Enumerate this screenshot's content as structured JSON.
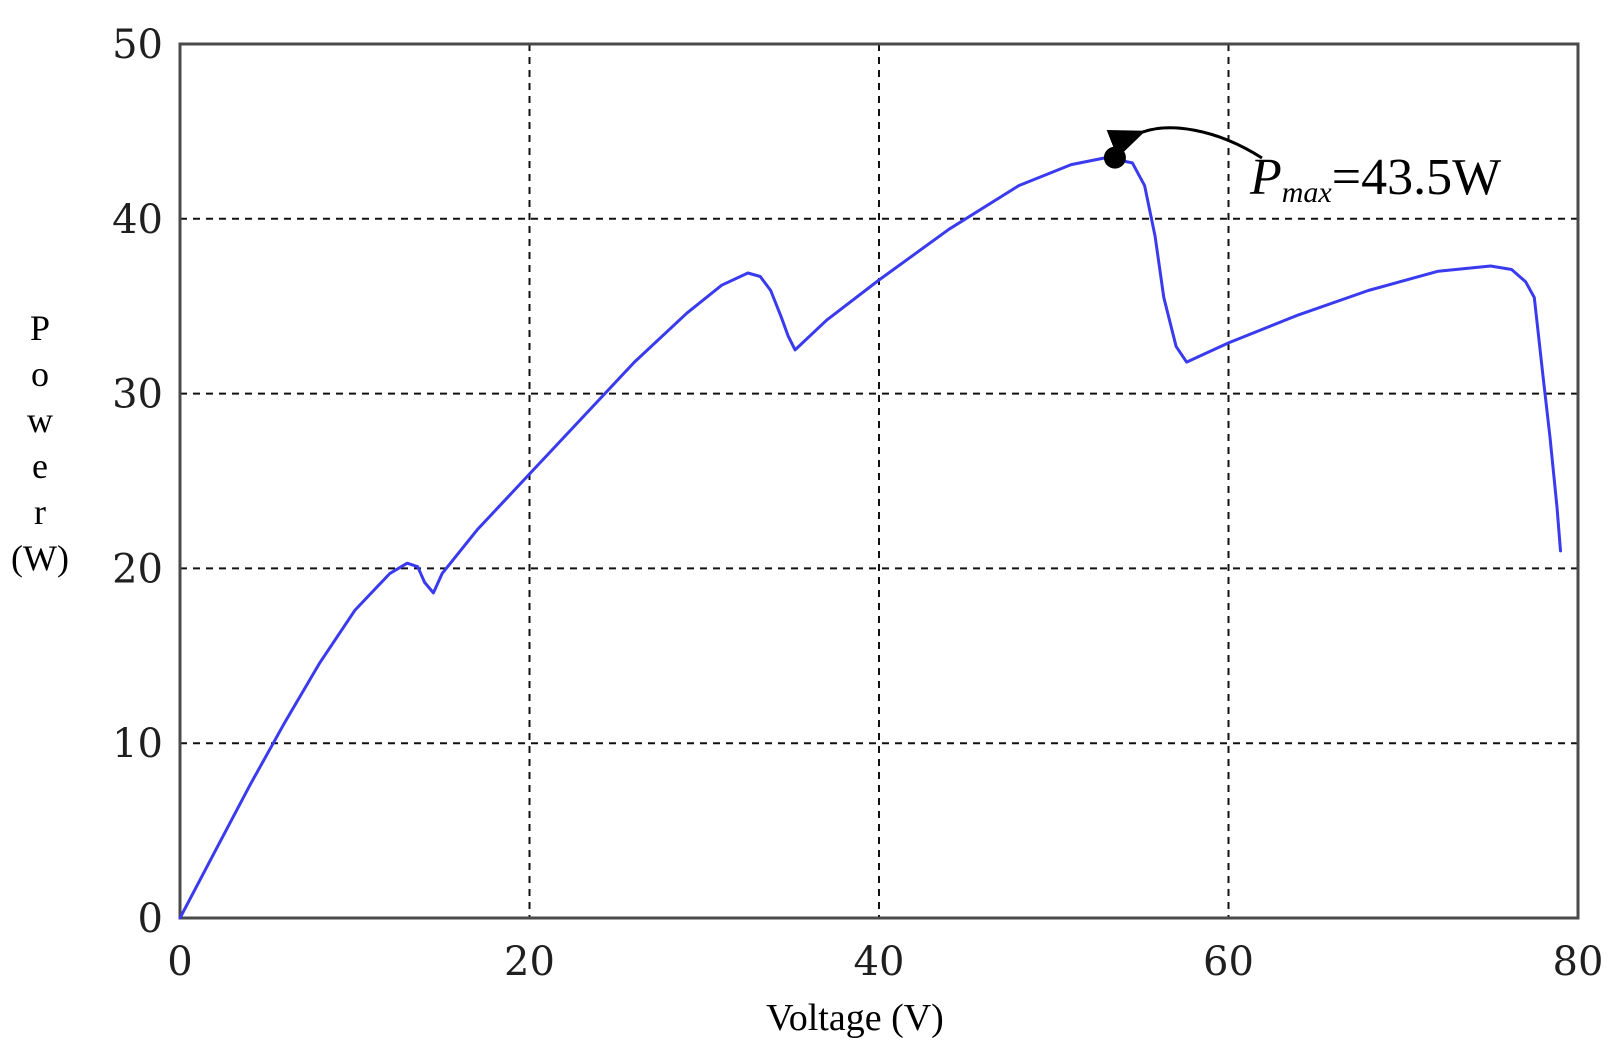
{
  "chart_data": {
    "type": "line",
    "xlabel": "Voltage (V)",
    "ylabel": "Power (W)",
    "xlim": [
      0,
      80
    ],
    "ylim": [
      0,
      50
    ],
    "x_ticks": [
      0,
      20,
      40,
      60,
      80
    ],
    "y_ticks": [
      0,
      10,
      20,
      30,
      40,
      50
    ],
    "grid": true,
    "grid_style": "dashed",
    "series": [
      {
        "color": "#3a3aee",
        "x": [
          0,
          2,
          4,
          6,
          8,
          10,
          12,
          13,
          13.6,
          14,
          14.5,
          15,
          17,
          20,
          23,
          26,
          29,
          31,
          32.5,
          33.2,
          33.8,
          34.4,
          34.8,
          35.2,
          37,
          40,
          44,
          48,
          51,
          53,
          54.5,
          55.2,
          55.8,
          56.3,
          57,
          57.6,
          60,
          64,
          68,
          72,
          75,
          76.2,
          77,
          77.5,
          78,
          78.4,
          78.8,
          79
        ],
        "y": [
          0,
          3.8,
          7.6,
          11.2,
          14.6,
          17.6,
          19.7,
          20.3,
          20.1,
          19.2,
          18.6,
          19.7,
          22.2,
          25.4,
          28.6,
          31.8,
          34.6,
          36.2,
          36.9,
          36.7,
          35.9,
          34.4,
          33.3,
          32.5,
          34.2,
          36.5,
          39.4,
          41.9,
          43.1,
          43.5,
          43.2,
          41.9,
          39.0,
          35.5,
          32.7,
          31.8,
          32.9,
          34.5,
          35.9,
          37.0,
          37.3,
          37.1,
          36.4,
          35.5,
          31.0,
          27.5,
          23.5,
          21.0
        ]
      }
    ],
    "marker": {
      "x": 53.5,
      "y": 43.5,
      "color": "#000000"
    },
    "annotations": [
      {
        "text_main": "P",
        "text_sub": "max",
        "text_value": "=43.5W"
      }
    ]
  }
}
